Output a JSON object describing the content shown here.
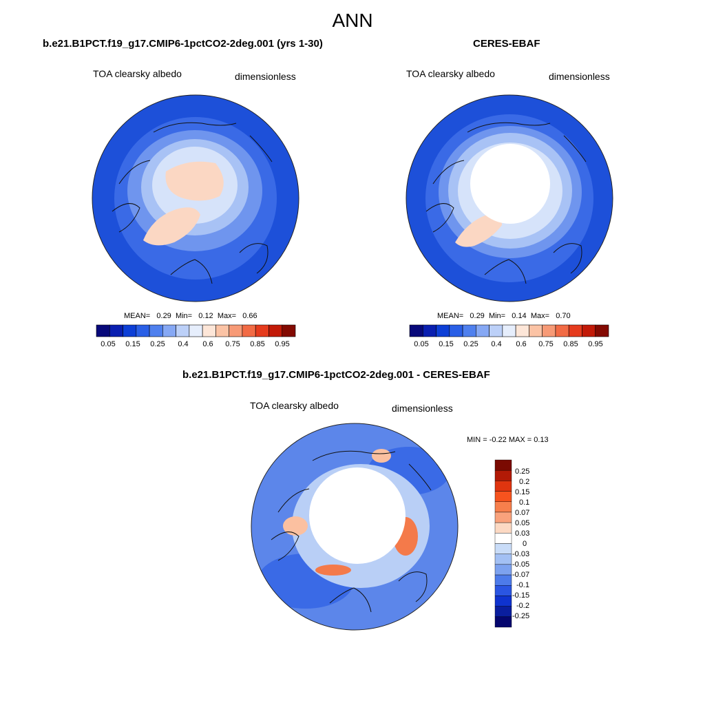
{
  "figure": {
    "title": "ANN",
    "field": "TOA clearsky albedo",
    "units": "dimensionless"
  },
  "panels": [
    {
      "title": "b.e21.B1PCT.f19_g17.CMIP6-1pctCO2-2deg.001 (yrs 1-30)",
      "stats": {
        "mean_label": "MEAN=",
        "mean": "0.29",
        "min_label": "Min=",
        "min": "0.12",
        "max_label": "Max=",
        "max": "0.66"
      }
    },
    {
      "title": "CERES-EBAF",
      "stats": {
        "mean_label": "MEAN=",
        "mean": "0.29",
        "min_label": "Min=",
        "min": "0.14",
        "max_label": "Max=",
        "max": "0.70"
      }
    },
    {
      "title": "b.e21.B1PCT.f19_g17.CMIP6-1pctCO2-2deg.001 - CERES-EBAF",
      "stats_text": "MIN =  -0.22 MAX =   0.13"
    }
  ],
  "colorbar_abs": {
    "colors": [
      "#08097a",
      "#0a1fb0",
      "#0d3fd6",
      "#2a5fe6",
      "#4f80ee",
      "#86a8f4",
      "#bcd0f8",
      "#e6eefc",
      "#fde6d8",
      "#fbc3a5",
      "#f79a76",
      "#f26b45",
      "#e53b1d",
      "#c21a08",
      "#830a02"
    ],
    "tick_labels": [
      "0.05",
      "0.15",
      "0.25",
      "0.4",
      "0.6",
      "0.75",
      "0.85",
      "0.95"
    ]
  },
  "colorbar_diff": {
    "colors": [
      "#7a0a02",
      "#b21a06",
      "#e0350f",
      "#f6531e",
      "#f77f4c",
      "#f9a27c",
      "#fcd9c3",
      "#ffffff",
      "#c9dcf8",
      "#a3c0f4",
      "#7da2ef",
      "#4d7bea",
      "#2a55e2",
      "#0f33cf",
      "#0a1e9e",
      "#05066e"
    ],
    "tick_labels": [
      "0.25",
      "0.2",
      "0.15",
      "0.1",
      "0.07",
      "0.05",
      "0.03",
      "0",
      "-0.03",
      "-0.05",
      "-0.07",
      "-0.1",
      "-0.15",
      "-0.2",
      "-0.25"
    ]
  },
  "maps": {
    "colors": {
      "ocean_deep": "#1d50d9",
      "ocean": "#3a6ae6",
      "mid": "#6f95ee",
      "light": "#a8c2f5",
      "pale": "#d6e3fa",
      "ice": "#fbd7c3",
      "land_line": "#111111",
      "missing": "#ffffff",
      "diff_bg": "#5c86ea",
      "diff_light": "#b9cff6",
      "diff_red": "#f47a4a",
      "diff_orange": "#fbc0a0"
    }
  }
}
